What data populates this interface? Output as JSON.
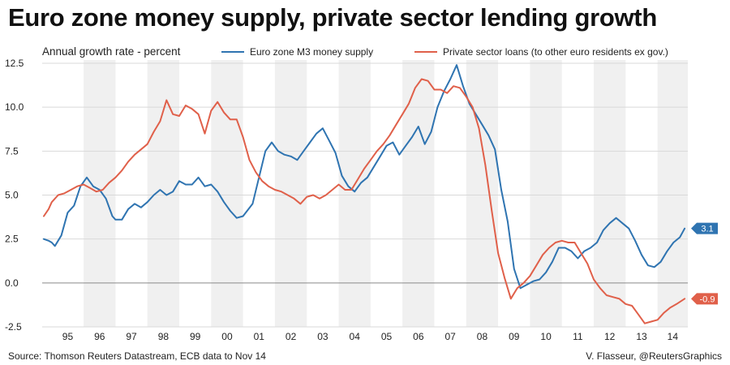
{
  "title": "Euro zone money supply, private sector lending growth",
  "source": "Source: Thomson Reuters Datastream, ECB data to Nov 14",
  "credit": "V. Flasseur, @ReutersGraphics",
  "chart_data": {
    "type": "line",
    "ylabel": "Annual growth rate - percent",
    "ylim": [
      -2.5,
      12.5
    ],
    "yticks": [
      -2.5,
      0.0,
      2.5,
      5.0,
      7.5,
      10.0,
      12.5
    ],
    "ytick_labels": [
      "-2.5",
      "0.0",
      "2.5",
      "5.0",
      "7.5",
      "10.0",
      "12.5"
    ],
    "xlim": [
      1994.7,
      2014.95
    ],
    "year_labels": [
      "95",
      "96",
      "97",
      "98",
      "99",
      "00",
      "01",
      "02",
      "03",
      "04",
      "05",
      "06",
      "07",
      "08",
      "09",
      "10",
      "11",
      "12",
      "13",
      "14"
    ],
    "shaded_years": [
      1996,
      1998,
      2000,
      2002,
      2004,
      2006,
      2008,
      2010,
      2012,
      2014
    ],
    "zero_line": true,
    "legend_position": "top",
    "series": [
      {
        "name": "Euro zone M3 money supply",
        "color": "#2f74b1",
        "end_label": "3.1",
        "x": [
          1994.75,
          1994.9,
          1995.0,
          1995.1,
          1995.3,
          1995.5,
          1995.7,
          1995.9,
          1996.1,
          1996.3,
          1996.5,
          1996.7,
          1996.9,
          1997.0,
          1997.2,
          1997.4,
          1997.6,
          1997.8,
          1998.0,
          1998.2,
          1998.4,
          1998.6,
          1998.8,
          1999.0,
          1999.2,
          1999.4,
          1999.6,
          1999.8,
          2000.0,
          2000.2,
          2000.4,
          2000.6,
          2000.8,
          2001.0,
          2001.3,
          2001.5,
          2001.7,
          2001.9,
          2002.1,
          2002.3,
          2002.5,
          2002.7,
          2002.9,
          2003.1,
          2003.3,
          2003.5,
          2003.7,
          2003.9,
          2004.1,
          2004.3,
          2004.5,
          2004.7,
          2004.9,
          2005.1,
          2005.3,
          2005.5,
          2005.7,
          2005.9,
          2006.1,
          2006.3,
          2006.5,
          2006.7,
          2006.9,
          2007.1,
          2007.3,
          2007.5,
          2007.7,
          2007.9,
          2008.1,
          2008.3,
          2008.5,
          2008.7,
          2008.9,
          2009.1,
          2009.3,
          2009.5,
          2009.7,
          2009.9,
          2010.1,
          2010.3,
          2010.5,
          2010.7,
          2010.9,
          2011.1,
          2011.3,
          2011.5,
          2011.7,
          2011.9,
          2012.1,
          2012.3,
          2012.5,
          2012.7,
          2012.9,
          2013.1,
          2013.3,
          2013.5,
          2013.7,
          2013.9,
          2014.1,
          2014.3,
          2014.5,
          2014.7,
          2014.85
        ],
        "values": [
          2.5,
          2.4,
          2.3,
          2.1,
          2.7,
          4.0,
          4.4,
          5.5,
          6.0,
          5.5,
          5.3,
          4.8,
          3.8,
          3.6,
          3.6,
          4.2,
          4.5,
          4.3,
          4.6,
          5.0,
          5.3,
          5.0,
          5.2,
          5.8,
          5.6,
          5.6,
          6.0,
          5.5,
          5.6,
          5.2,
          4.6,
          4.1,
          3.7,
          3.8,
          4.5,
          6.0,
          7.5,
          8.0,
          7.5,
          7.3,
          7.2,
          7.0,
          7.5,
          8.0,
          8.5,
          8.8,
          8.1,
          7.4,
          6.1,
          5.5,
          5.2,
          5.7,
          6.0,
          6.6,
          7.2,
          7.8,
          8.0,
          7.3,
          7.8,
          8.3,
          8.9,
          7.9,
          8.6,
          10.0,
          10.9,
          11.6,
          12.4,
          11.2,
          10.2,
          9.6,
          9.0,
          8.4,
          7.6,
          5.3,
          3.5,
          0.8,
          -0.3,
          -0.1,
          0.1,
          0.2,
          0.6,
          1.2,
          2.0,
          2.0,
          1.8,
          1.4,
          1.8,
          2.0,
          2.3,
          3.0,
          3.4,
          3.7,
          3.4,
          3.1,
          2.4,
          1.6,
          1.0,
          0.9,
          1.2,
          1.8,
          2.3,
          2.6,
          3.1
        ]
      },
      {
        "name": "Private sector loans (to other euro residents ex gov.)",
        "color": "#e0604a",
        "end_label": "-0.9",
        "x": [
          1994.75,
          1994.9,
          1995.0,
          1995.2,
          1995.4,
          1995.6,
          1995.8,
          1996.0,
          1996.2,
          1996.4,
          1996.6,
          1996.8,
          1997.0,
          1997.2,
          1997.4,
          1997.6,
          1997.8,
          1998.0,
          1998.2,
          1998.4,
          1998.6,
          1998.8,
          1999.0,
          1999.2,
          1999.4,
          1999.6,
          1999.8,
          2000.0,
          2000.2,
          2000.4,
          2000.6,
          2000.8,
          2001.0,
          2001.2,
          2001.4,
          2001.6,
          2001.8,
          2002.0,
          2002.2,
          2002.4,
          2002.6,
          2002.8,
          2003.0,
          2003.2,
          2003.4,
          2003.6,
          2003.8,
          2004.0,
          2004.2,
          2004.4,
          2004.6,
          2004.8,
          2005.0,
          2005.2,
          2005.4,
          2005.6,
          2005.8,
          2006.0,
          2006.2,
          2006.4,
          2006.6,
          2006.8,
          2007.0,
          2007.2,
          2007.4,
          2007.6,
          2007.8,
          2008.0,
          2008.2,
          2008.4,
          2008.6,
          2008.8,
          2009.0,
          2009.2,
          2009.4,
          2009.6,
          2009.8,
          2010.0,
          2010.2,
          2010.4,
          2010.6,
          2010.8,
          2011.0,
          2011.2,
          2011.4,
          2011.6,
          2011.8,
          2012.0,
          2012.2,
          2012.4,
          2012.6,
          2012.8,
          2013.0,
          2013.2,
          2013.4,
          2013.6,
          2013.8,
          2014.0,
          2014.2,
          2014.4,
          2014.6,
          2014.85
        ],
        "values": [
          3.8,
          4.2,
          4.6,
          5.0,
          5.1,
          5.3,
          5.5,
          5.6,
          5.4,
          5.2,
          5.3,
          5.7,
          6.0,
          6.4,
          6.9,
          7.3,
          7.6,
          7.9,
          8.6,
          9.2,
          10.4,
          9.6,
          9.5,
          10.1,
          9.9,
          9.6,
          8.5,
          9.8,
          10.3,
          9.7,
          9.3,
          9.3,
          8.3,
          7.0,
          6.3,
          5.8,
          5.5,
          5.3,
          5.2,
          5.0,
          4.8,
          4.5,
          4.9,
          5.0,
          4.8,
          5.0,
          5.3,
          5.6,
          5.3,
          5.3,
          5.9,
          6.5,
          7.0,
          7.5,
          7.9,
          8.4,
          9.0,
          9.6,
          10.2,
          11.1,
          11.6,
          11.5,
          11.0,
          11.0,
          10.8,
          11.2,
          11.1,
          10.6,
          10.0,
          8.8,
          6.7,
          4.1,
          1.7,
          0.3,
          -0.9,
          -0.3,
          0.0,
          0.4,
          1.0,
          1.6,
          2.0,
          2.3,
          2.4,
          2.3,
          2.3,
          1.7,
          1.1,
          0.2,
          -0.3,
          -0.7,
          -0.8,
          -0.9,
          -1.2,
          -1.3,
          -1.8,
          -2.3,
          -2.2,
          -2.1,
          -1.7,
          -1.4,
          -1.2,
          -0.9
        ]
      }
    ]
  }
}
